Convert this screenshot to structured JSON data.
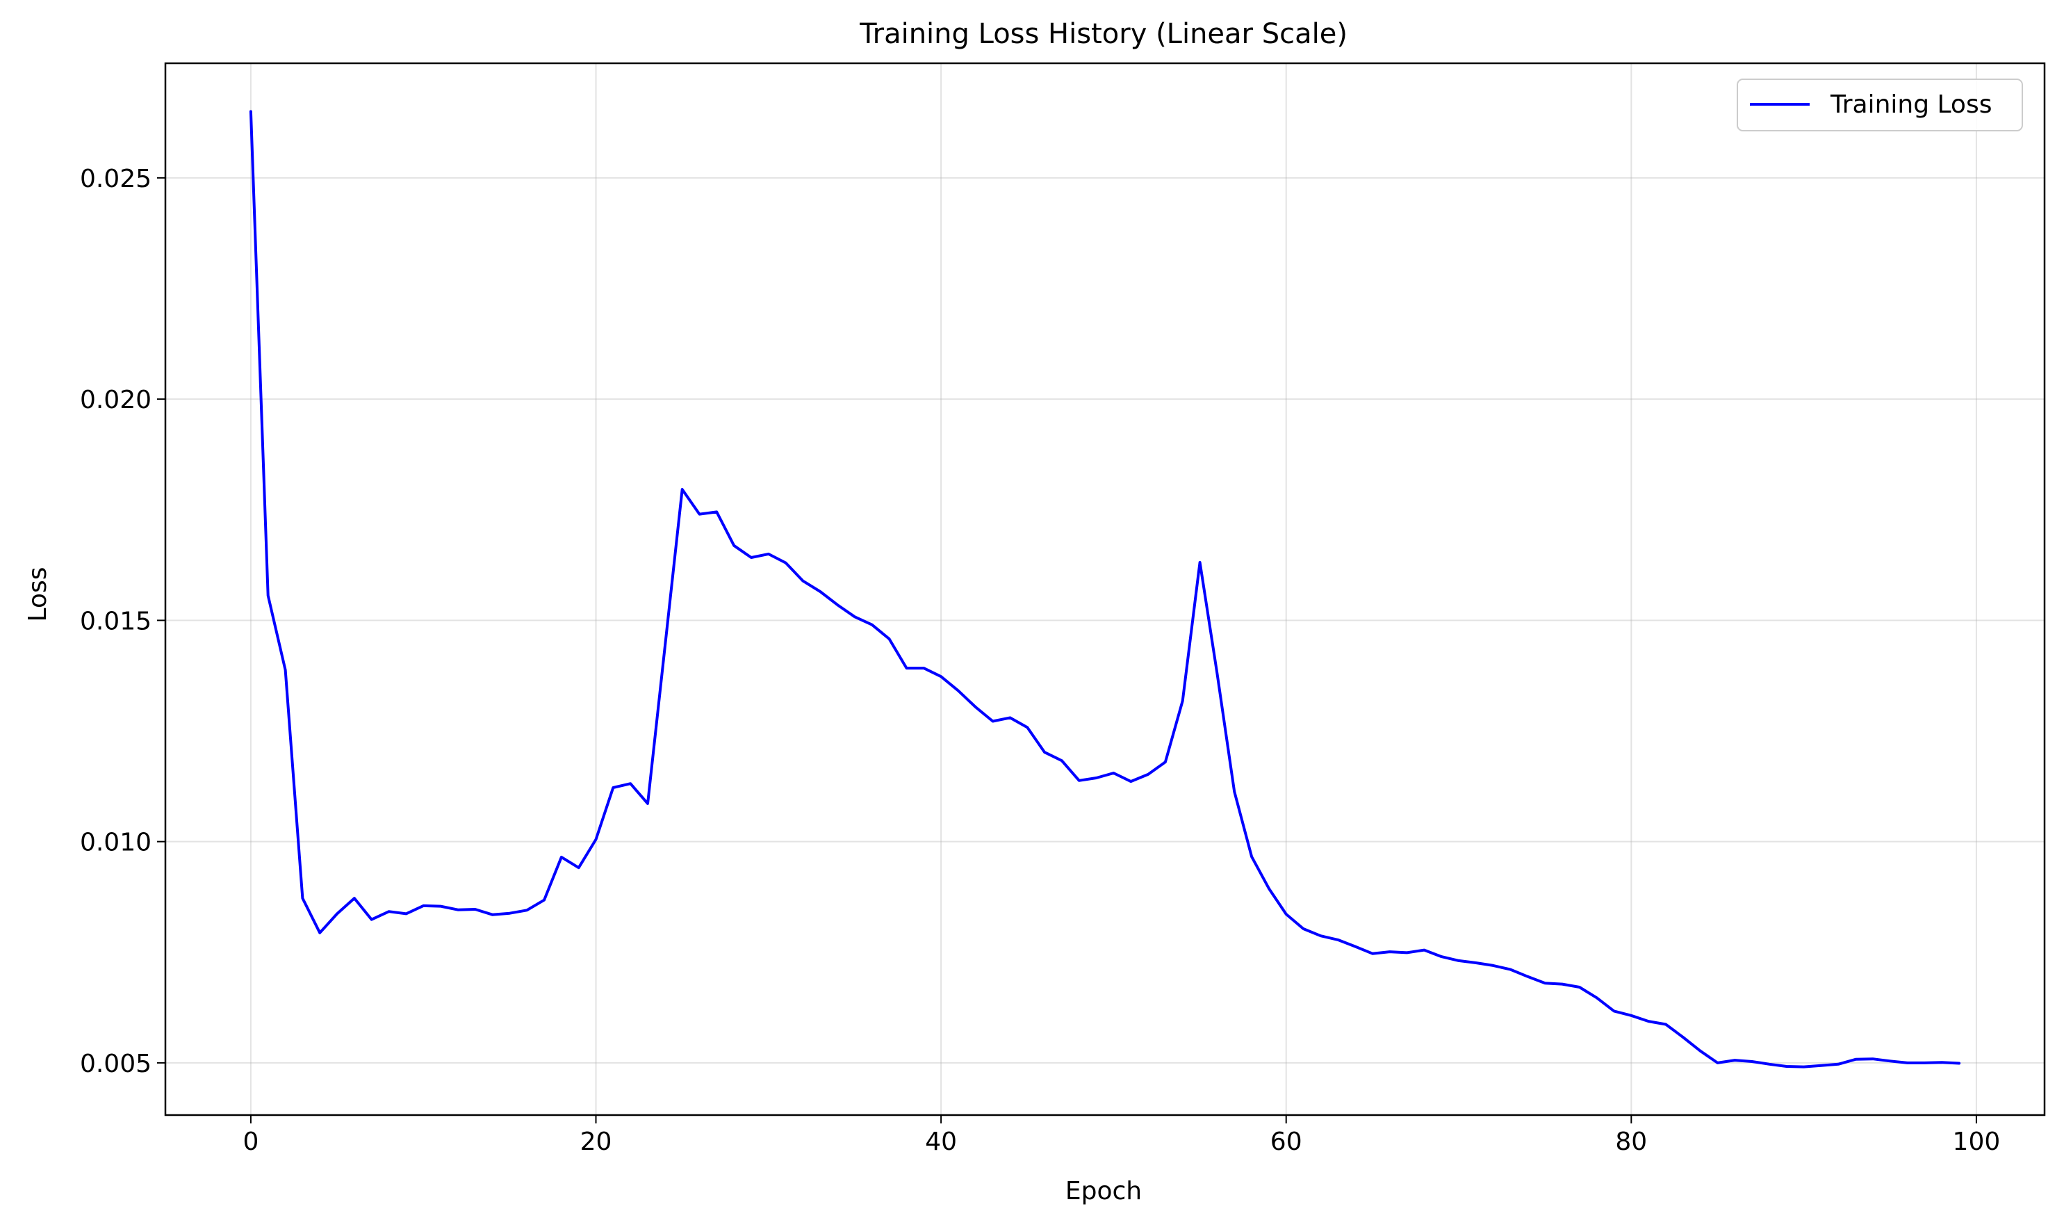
{
  "chart_data": {
    "type": "line",
    "title": "Training Loss History (Linear Scale)",
    "xlabel": "Epoch",
    "ylabel": "Loss",
    "xlim": [
      -4.95,
      103.95
    ],
    "ylim": [
      0.00382,
      0.02759
    ],
    "xticks": [
      0,
      20,
      40,
      60,
      80,
      100
    ],
    "xtick_labels": [
      "0",
      "20",
      "40",
      "60",
      "80",
      "100"
    ],
    "yticks": [
      0.005,
      0.01,
      0.015,
      0.02,
      0.025
    ],
    "ytick_labels": [
      "0.005",
      "0.010",
      "0.015",
      "0.020",
      "0.025"
    ],
    "grid": true,
    "legend_position": "upper right",
    "series": [
      {
        "name": "Training Loss",
        "color": "#0000ff",
        "x": [
          0,
          1,
          2,
          3,
          4,
          5,
          6,
          7,
          8,
          9,
          10,
          11,
          12,
          13,
          14,
          15,
          16,
          17,
          18,
          19,
          20,
          21,
          22,
          23,
          24,
          25,
          26,
          27,
          28,
          29,
          30,
          31,
          32,
          33,
          34,
          35,
          36,
          37,
          38,
          39,
          40,
          41,
          42,
          43,
          44,
          45,
          46,
          47,
          48,
          49,
          50,
          51,
          52,
          53,
          54,
          55,
          56,
          57,
          58,
          59,
          60,
          61,
          62,
          63,
          64,
          65,
          66,
          67,
          68,
          69,
          70,
          71,
          72,
          73,
          74,
          75,
          76,
          77,
          78,
          79,
          80,
          81,
          82,
          83,
          84,
          85,
          86,
          87,
          88,
          89,
          90,
          91,
          92,
          93,
          94,
          95,
          96,
          97,
          98,
          99
        ],
        "y": [
          0.0265,
          0.01556,
          0.01388,
          0.00872,
          0.00794,
          0.00837,
          0.00872,
          0.00824,
          0.00842,
          0.00837,
          0.00855,
          0.00854,
          0.00846,
          0.00847,
          0.00835,
          0.00838,
          0.00845,
          0.00868,
          0.00965,
          0.00941,
          0.01005,
          0.01122,
          0.01131,
          0.01086,
          0.0144,
          0.01796,
          0.0174,
          0.01745,
          0.01669,
          0.01642,
          0.0165,
          0.0163,
          0.01589,
          0.01565,
          0.01535,
          0.01508,
          0.0149,
          0.01458,
          0.01392,
          0.01392,
          0.01373,
          0.01341,
          0.01304,
          0.01272,
          0.0128,
          0.01258,
          0.01202,
          0.01183,
          0.01138,
          0.01144,
          0.01155,
          0.01136,
          0.01152,
          0.0118,
          0.01318,
          0.01631,
          0.0138,
          0.01113,
          0.00966,
          0.00894,
          0.00836,
          0.00803,
          0.00787,
          0.00778,
          0.00763,
          0.00747,
          0.00751,
          0.00749,
          0.00755,
          0.0074,
          0.00731,
          0.00726,
          0.0072,
          0.00711,
          0.00695,
          0.0068,
          0.00678,
          0.00671,
          0.00647,
          0.00617,
          0.00607,
          0.00594,
          0.00587,
          0.00558,
          0.00527,
          0.005,
          0.00506,
          0.00503,
          0.00497,
          0.00492,
          0.00491,
          0.00494,
          0.00497,
          0.00508,
          0.00509,
          0.00504,
          0.005,
          0.005,
          0.00501,
          0.00499
        ]
      }
    ]
  }
}
